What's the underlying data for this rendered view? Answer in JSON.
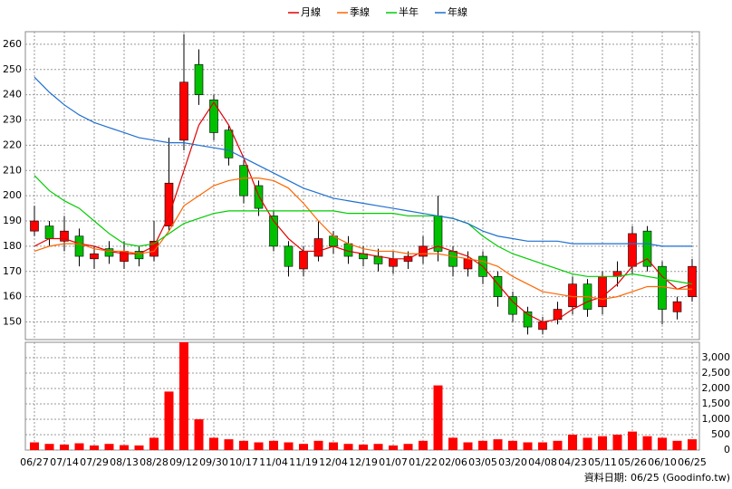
{
  "chart_data": {
    "type": "candlestick",
    "categories": [
      "06/27",
      null,
      "07/14",
      null,
      "07/29",
      null,
      "08/13",
      null,
      "08/28",
      null,
      "09/12",
      null,
      "09/30",
      null,
      "10/17",
      null,
      "11/04",
      null,
      "11/19",
      null,
      "12/04",
      null,
      "12/19",
      null,
      "01/07",
      null,
      "01/22",
      null,
      "02/06",
      null,
      "03/05",
      null,
      "03/20",
      null,
      "04/08",
      null,
      "04/23",
      null,
      "05/11",
      null,
      "05/26",
      null,
      "06/10",
      null,
      "06/25"
    ],
    "open": [
      186,
      188,
      182,
      184,
      175,
      179,
      174,
      178,
      176,
      188,
      222,
      252,
      238,
      226,
      212,
      204,
      192,
      180,
      171,
      176,
      184,
      181,
      177,
      176,
      172,
      174,
      176,
      192,
      178,
      171,
      176,
      168,
      160,
      154,
      147,
      151,
      156,
      165,
      156,
      168,
      172,
      186,
      172,
      154,
      160
    ],
    "high": [
      196,
      190,
      192,
      187,
      180,
      182,
      182,
      180,
      190,
      223,
      264,
      258,
      240,
      228,
      214,
      206,
      194,
      182,
      180,
      190,
      186,
      184,
      180,
      179,
      178,
      178,
      184,
      200,
      180,
      178,
      178,
      170,
      162,
      156,
      152,
      158,
      168,
      167,
      170,
      174,
      188,
      188,
      174,
      160,
      175
    ],
    "low": [
      184,
      180,
      178,
      172,
      171,
      173,
      171,
      172,
      174,
      186,
      218,
      236,
      222,
      212,
      197,
      192,
      178,
      168,
      168,
      174,
      177,
      173,
      172,
      170,
      169,
      171,
      173,
      174,
      168,
      168,
      165,
      156,
      150,
      145,
      145,
      149,
      153,
      152,
      153,
      164,
      169,
      170,
      149,
      151,
      158
    ],
    "close": [
      190,
      183,
      186,
      176,
      177,
      176,
      178,
      175,
      182,
      205,
      245,
      240,
      225,
      215,
      200,
      195,
      180,
      172,
      178,
      183,
      180,
      176,
      175,
      173,
      175,
      176,
      180,
      178,
      172,
      175,
      168,
      160,
      153,
      148,
      150,
      155,
      165,
      155,
      168,
      170,
      185,
      172,
      155,
      158,
      172
    ],
    "up_color": "#ff0000",
    "down_color": "#00c000",
    "ylim": [
      143,
      265
    ],
    "yticks": [
      150,
      160,
      170,
      180,
      190,
      200,
      210,
      220,
      230,
      240,
      250,
      260
    ],
    "grid": true,
    "legend": "top",
    "series": [
      {
        "name": "月線",
        "color": "#e00000",
        "values": [
          180,
          183,
          183,
          181,
          180,
          178,
          177,
          177,
          180,
          192,
          210,
          228,
          237,
          228,
          215,
          200,
          190,
          183,
          178,
          178,
          180,
          178,
          177,
          176,
          175,
          175,
          178,
          180,
          178,
          176,
          172,
          165,
          158,
          153,
          150,
          151,
          155,
          158,
          160,
          165,
          172,
          175,
          168,
          163,
          165
        ]
      },
      {
        "name": "季線",
        "color": "#ff6600",
        "values": [
          178,
          180,
          181,
          181,
          179,
          178,
          178,
          177,
          178,
          186,
          196,
          200,
          204,
          206,
          207,
          207,
          206,
          203,
          197,
          190,
          184,
          181,
          179,
          178,
          178,
          177,
          177,
          177,
          176,
          175,
          174,
          172,
          168,
          165,
          162,
          161,
          160,
          160,
          159,
          160,
          162,
          164,
          164,
          163,
          163
        ]
      },
      {
        "name": "半年",
        "color": "#00cc00",
        "values": [
          208,
          202,
          198,
          195,
          190,
          185,
          181,
          180,
          181,
          185,
          189,
          191,
          193,
          194,
          194,
          194,
          194,
          194,
          194,
          194,
          194,
          193,
          193,
          193,
          193,
          192,
          192,
          192,
          191,
          189,
          184,
          180,
          177,
          175,
          173,
          171,
          169,
          168,
          168,
          168,
          169,
          168,
          167,
          166,
          165
        ]
      },
      {
        "name": "年線",
        "color": "#1f6fd0",
        "values": [
          247,
          241,
          236,
          232,
          229,
          227,
          225,
          223,
          222,
          221,
          221,
          220,
          219,
          218,
          215,
          212,
          209,
          206,
          203,
          201,
          199,
          198,
          197,
          196,
          195,
          194,
          193,
          192,
          191,
          189,
          186,
          184,
          183,
          182,
          182,
          182,
          181,
          181,
          181,
          181,
          181,
          181,
          180,
          180,
          180
        ]
      }
    ],
    "volume": {
      "color": "#ff0000",
      "values": [
        250,
        200,
        180,
        220,
        150,
        200,
        160,
        150,
        400,
        1900,
        3500,
        1000,
        400,
        350,
        300,
        250,
        300,
        250,
        200,
        300,
        250,
        200,
        180,
        200,
        150,
        200,
        300,
        2100,
        400,
        250,
        300,
        350,
        300,
        250,
        250,
        300,
        500,
        400,
        450,
        500,
        600,
        450,
        400,
        300,
        350
      ],
      "ylim": [
        0,
        3500
      ],
      "yticks": [
        0,
        500,
        {
          "value": 1000,
          "label": "1,000"
        },
        {
          "value": 1500,
          "label": "1,500"
        },
        {
          "value": 2000,
          "label": "2,000"
        },
        {
          "value": 2500,
          "label": "2,500"
        },
        {
          "value": 3000,
          "label": "3,000"
        }
      ]
    },
    "source": "資料日期: 06/25 (Goodinfo.tw)"
  }
}
